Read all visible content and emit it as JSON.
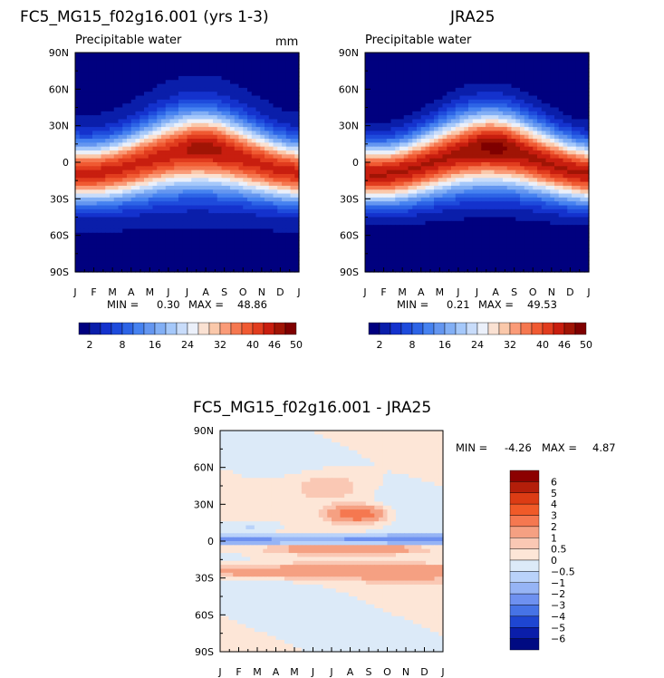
{
  "chart_data": [
    {
      "type": "heatmap",
      "title": "FC5_MG15_f02g16.001 (yrs 1-3)",
      "subtitle": "Precipitable water",
      "units": "mm",
      "x_ticks": [
        "J",
        "F",
        "M",
        "A",
        "M",
        "J",
        "J",
        "A",
        "S",
        "O",
        "N",
        "D",
        "J"
      ],
      "y_ticks": [
        "90N",
        "60N",
        "30N",
        "0",
        "30S",
        "60S",
        "90S"
      ],
      "ylim": [
        -90,
        90
      ],
      "min_label": "MIN =",
      "min_value": "0.30",
      "max_label": "MAX =",
      "max_value": "48.86",
      "field": {
        "equator_peak": 45,
        "peak_lat_amplitude": 9,
        "pole_value": 2
      }
    },
    {
      "type": "heatmap",
      "title": "JRA25",
      "subtitle": "Precipitable water",
      "x_ticks": [
        "J",
        "F",
        "M",
        "A",
        "M",
        "J",
        "J",
        "A",
        "S",
        "O",
        "N",
        "D",
        "J"
      ],
      "y_ticks": [
        "90N",
        "60N",
        "30N",
        "0",
        "30S",
        "60S",
        "90S"
      ],
      "ylim": [
        -90,
        90
      ],
      "min_label": "MIN =",
      "min_value": "0.21",
      "max_label": "MAX =",
      "max_value": "49.53",
      "field": {
        "equator_peak": 47,
        "peak_lat_amplitude": 10,
        "pole_value": 1
      }
    },
    {
      "type": "heatmap",
      "title": "FC5_MG15_f02g16.001 - JRA25",
      "x_ticks": [
        "J",
        "F",
        "M",
        "A",
        "M",
        "J",
        "J",
        "A",
        "S",
        "O",
        "N",
        "D",
        "J"
      ],
      "y_ticks": [
        "90N",
        "60N",
        "30N",
        "0",
        "30S",
        "60S",
        "90S"
      ],
      "ylim": [
        -90,
        90
      ],
      "min_label": "MIN =",
      "min_value": "-4.26",
      "max_label": "MAX =",
      "max_value": "4.87"
    }
  ],
  "colorbars": {
    "abs": {
      "labels": [
        "2",
        "8",
        "16",
        "24",
        "32",
        "40",
        "46",
        "50"
      ],
      "colors": [
        "#00007f",
        "#0a1eaa",
        "#1432cd",
        "#1e4bdc",
        "#2d64e6",
        "#4682f0",
        "#6496f0",
        "#82aff5",
        "#a5c8fa",
        "#c8dcfa",
        "#ebf0fa",
        "#fae1d2",
        "#fac8aa",
        "#fa9b78",
        "#f57850",
        "#f05a32",
        "#e13c1e",
        "#c81e0f",
        "#a01405",
        "#7f0000"
      ]
    },
    "diff": {
      "labels": [
        "6",
        "5",
        "4",
        "3",
        "2",
        "1",
        "0.5",
        "0",
        "−0.5",
        "−1",
        "−2",
        "−3",
        "−4",
        "−5",
        "−6"
      ],
      "colors_top_to_bottom": [
        "#8c0000",
        "#b41e0a",
        "#dc3c14",
        "#f05a28",
        "#f57850",
        "#f5a082",
        "#fac8b4",
        "#fde6d7",
        "#dceaf8",
        "#b9d2fa",
        "#96b4f5",
        "#6e91f0",
        "#4673e6",
        "#1e46d2",
        "#0a1eaa",
        "#000a82"
      ]
    }
  }
}
